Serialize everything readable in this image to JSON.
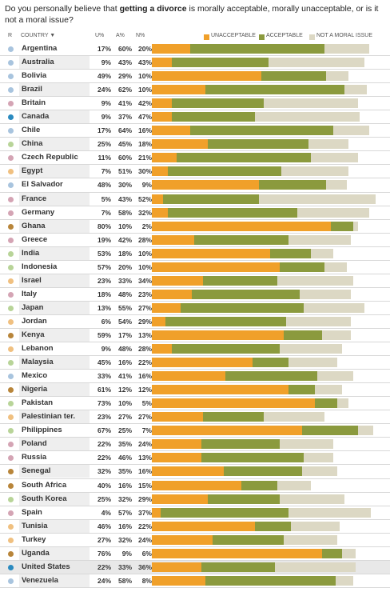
{
  "question": {
    "pre": "Do you personally believe that ",
    "bold": "getting a divorce",
    "post": " is morally acceptable, morally unacceptable, or is it not a moral issue?"
  },
  "header": {
    "r": "R",
    "country": "COUNTRY ▼",
    "u": "U%",
    "a": "A%",
    "n": "N%"
  },
  "colors": {
    "unacceptable": "#f0a02a",
    "acceptable": "#8b9a3e",
    "not_moral": "#dcd8c4"
  },
  "chart_data": {
    "type": "bar",
    "stacked": true,
    "orientation": "horizontal",
    "xlim": [
      0,
      100
    ],
    "categories": [
      "Argentina",
      "Australia",
      "Bolivia",
      "Brazil",
      "Britain",
      "Canada",
      "Chile",
      "China",
      "Czech Republic",
      "Egypt",
      "El Salvador",
      "France",
      "Germany",
      "Ghana",
      "Greece",
      "India",
      "Indonesia",
      "Israel",
      "Italy",
      "Japan",
      "Jordan",
      "Kenya",
      "Lebanon",
      "Malaysia",
      "Mexico",
      "Nigeria",
      "Pakistan",
      "Palestinian ter.",
      "Philippines",
      "Poland",
      "Russia",
      "Senegal",
      "South Africa",
      "South Korea",
      "Spain",
      "Tunisia",
      "Turkey",
      "Uganda",
      "United States",
      "Venezuela"
    ],
    "series": [
      {
        "name": "UNACCEPTABLE",
        "values": [
          17,
          9,
          49,
          24,
          9,
          9,
          17,
          25,
          11,
          7,
          48,
          5,
          7,
          80,
          19,
          53,
          57,
          23,
          18,
          13,
          6,
          59,
          9,
          45,
          33,
          61,
          73,
          23,
          67,
          22,
          22,
          32,
          40,
          25,
          4,
          46,
          27,
          76,
          22,
          24
        ]
      },
      {
        "name": "ACCEPTABLE",
        "values": [
          60,
          43,
          29,
          62,
          41,
          37,
          64,
          45,
          60,
          51,
          30,
          43,
          58,
          10,
          42,
          18,
          20,
          33,
          48,
          55,
          54,
          17,
          48,
          16,
          41,
          12,
          10,
          27,
          25,
          35,
          46,
          35,
          16,
          32,
          57,
          16,
          32,
          9,
          33,
          58
        ]
      },
      {
        "name": "NOT A MORAL ISSUE",
        "values": [
          20,
          43,
          10,
          10,
          42,
          47,
          16,
          18,
          21,
          30,
          9,
          52,
          32,
          2,
          28,
          10,
          10,
          34,
          23,
          27,
          29,
          13,
          28,
          22,
          16,
          12,
          5,
          27,
          7,
          24,
          13,
          16,
          15,
          29,
          37,
          22,
          24,
          6,
          36,
          8
        ]
      }
    ],
    "region_colors": [
      "#a8c4de",
      "#a8c4de",
      "#a8c4de",
      "#a8c4de",
      "#d4a4b4",
      "#2a8abf",
      "#a8c4de",
      "#b8d498",
      "#d4a4b4",
      "#f0c080",
      "#a8c4de",
      "#d4a4b4",
      "#d4a4b4",
      "#b8853a",
      "#d4a4b4",
      "#b8d498",
      "#b8d498",
      "#f0c080",
      "#d4a4b4",
      "#b8d498",
      "#f0c080",
      "#b8853a",
      "#f0c080",
      "#b8d498",
      "#a8c4de",
      "#b8853a",
      "#b8d498",
      "#f0c080",
      "#b8d498",
      "#d4a4b4",
      "#d4a4b4",
      "#b8853a",
      "#b8853a",
      "#b8d498",
      "#d4a4b4",
      "#f0c080",
      "#f0c080",
      "#b8853a",
      "#2a8abf",
      "#a8c4de"
    ]
  }
}
